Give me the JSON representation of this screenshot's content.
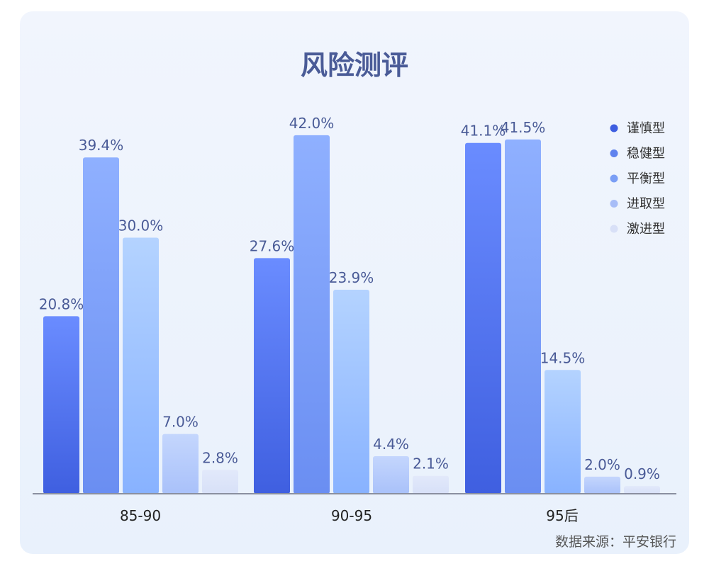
{
  "chart_data": {
    "type": "bar",
    "title": "风险测评",
    "categories": [
      "85-90",
      "90-95",
      "95后"
    ],
    "series": [
      {
        "name": "谨慎型",
        "values": [
          20.8,
          27.6,
          41.1
        ],
        "labels": [
          "20.8%",
          "27.6%",
          "41.1%"
        ],
        "color": "#3f5fe0",
        "color_top": "#6a8cff"
      },
      {
        "name": "稳健型",
        "values": [
          39.4,
          42.0,
          41.5
        ],
        "labels": [
          "39.4%",
          "42.0%",
          "41.5%"
        ],
        "color": "#6a8ef2",
        "color_top": "#8fb0ff"
      },
      {
        "name": "平衡型",
        "values": [
          30.0,
          23.9,
          14.5
        ],
        "labels": [
          "30.0%",
          "23.9%",
          "14.5%"
        ],
        "color": "#88b2ff",
        "color_top": "#b4d3ff"
      },
      {
        "name": "进取型",
        "values": [
          7.0,
          4.4,
          2.0
        ],
        "labels": [
          "7.0%",
          "4.4%",
          "2.0%"
        ],
        "color": "#a9c1fa",
        "color_top": "#c4d6fd"
      },
      {
        "name": "激进型",
        "values": [
          2.8,
          2.1,
          0.9
        ],
        "labels": [
          "2.8%",
          "2.1%",
          "0.9%"
        ],
        "color": "#d7e0f8",
        "color_top": "#e2e9fa"
      }
    ],
    "ylim": [
      0,
      45
    ],
    "grid": false,
    "legend": "top-right"
  },
  "source": "数据来源：平安银行"
}
